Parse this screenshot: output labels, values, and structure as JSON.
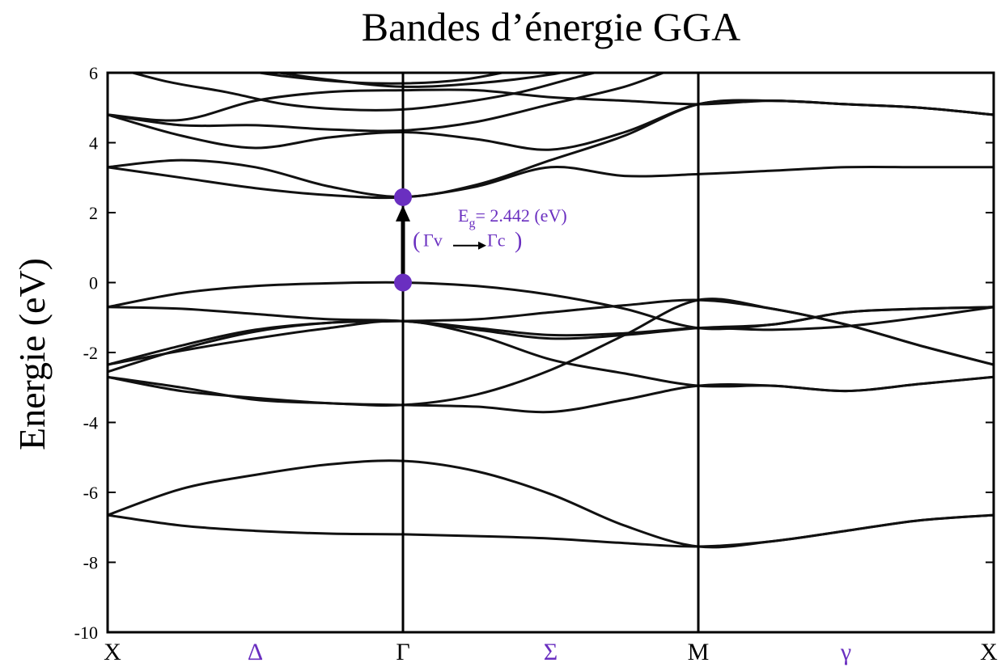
{
  "chart_data": {
    "type": "line",
    "title": "Bandes d’énergie GGA",
    "ylabel": "Energie (eV)",
    "xlabel": "",
    "ylim": [
      -10,
      6
    ],
    "yticks": [
      {
        "value": 6,
        "label": "6"
      },
      {
        "value": 4,
        "label": "4"
      },
      {
        "value": 2,
        "label": "2"
      },
      {
        "value": 0,
        "label": "0"
      },
      {
        "value": -2,
        "label": "-2"
      },
      {
        "value": -4,
        "label": "-4"
      },
      {
        "value": -6,
        "label": "-6"
      },
      {
        "value": -8,
        "label": "-8"
      },
      {
        "value": -10,
        "label": "-10"
      }
    ],
    "kpath": [
      "X",
      "Δ",
      "Γ",
      "Σ",
      "M",
      "γ",
      "X"
    ],
    "kpath_positions": [
      0,
      0.5,
      1,
      1.5,
      2,
      2.5,
      3
    ],
    "high_symmetry_points": [
      0,
      1,
      2,
      3
    ],
    "line_color": "#111111",
    "accent_color": "#6a2fc0",
    "series": [
      {
        "x": [
          0,
          0.25,
          0.5,
          0.75,
          1,
          1.25,
          1.5,
          1.75,
          2,
          2.25,
          2.5,
          2.75,
          3
        ],
        "y": [
          -6.65,
          -6.95,
          -7.1,
          -7.18,
          -7.2,
          -7.25,
          -7.32,
          -7.45,
          -7.55,
          -7.4,
          -7.1,
          -6.8,
          -6.65
        ]
      },
      {
        "x": [
          0,
          0.25,
          0.5,
          0.75,
          1,
          1.25,
          1.5,
          1.75,
          2,
          2.25,
          2.5,
          2.75,
          3
        ],
        "y": [
          -6.65,
          -5.9,
          -5.5,
          -5.2,
          -5.1,
          -5.4,
          -6.05,
          -6.95,
          -7.55,
          -7.4,
          -7.1,
          -6.8,
          -6.65
        ]
      },
      {
        "x": [
          0,
          0.25,
          0.5,
          0.75,
          1,
          1.25,
          1.5,
          1.75,
          2,
          2.25,
          2.5,
          2.75,
          3
        ],
        "y": [
          -2.7,
          -3.1,
          -3.3,
          -3.45,
          -3.5,
          -3.55,
          -3.7,
          -3.35,
          -2.95,
          -2.95,
          -3.1,
          -2.9,
          -2.7
        ]
      },
      {
        "x": [
          0,
          0.25,
          0.5,
          0.75,
          1,
          1.25,
          1.5,
          1.75,
          2,
          2.25,
          2.5,
          2.75,
          3
        ],
        "y": [
          -2.7,
          -3.0,
          -3.35,
          -3.45,
          -3.5,
          -3.2,
          -2.5,
          -1.5,
          -0.5,
          -0.75,
          -1.2,
          -1.8,
          -2.35
        ]
      },
      {
        "x": [
          0,
          0.25,
          0.5,
          0.75,
          1,
          1.25,
          1.5,
          1.75,
          2,
          2.25,
          2.5,
          2.75,
          3
        ],
        "y": [
          -2.35,
          -1.95,
          -1.6,
          -1.3,
          -1.1,
          -1.5,
          -2.2,
          -2.6,
          -2.95,
          -2.95,
          -3.1,
          -2.9,
          -2.7
        ]
      },
      {
        "x": [
          0,
          0.25,
          0.5,
          0.75,
          1,
          1.25,
          1.5,
          1.75,
          2,
          2.25,
          2.5,
          2.75,
          3
        ],
        "y": [
          -2.35,
          -1.8,
          -1.35,
          -1.15,
          -1.1,
          -1.05,
          -0.85,
          -0.65,
          -0.5,
          -0.75,
          -1.2,
          -1.8,
          -2.35
        ]
      },
      {
        "x": [
          0,
          0.25,
          0.5,
          0.75,
          1,
          1.25,
          1.5,
          1.75,
          2,
          2.25,
          2.5,
          2.75,
          3
        ],
        "y": [
          -2.55,
          -1.9,
          -1.4,
          -1.15,
          -1.1,
          -1.3,
          -1.5,
          -1.45,
          -1.3,
          -1.35,
          -1.25,
          -1.0,
          -0.7
        ]
      },
      {
        "x": [
          0,
          0.25,
          0.5,
          0.75,
          1,
          1.25,
          1.5,
          1.75,
          2,
          2.25,
          2.5,
          2.75,
          3
        ],
        "y": [
          -0.7,
          -0.75,
          -0.9,
          -1.05,
          -1.1,
          -1.35,
          -1.6,
          -1.5,
          -1.3,
          -1.2,
          -0.85,
          -0.75,
          -0.7
        ]
      },
      {
        "x": [
          0,
          0.25,
          0.5,
          0.75,
          1,
          1.25,
          1.5,
          1.75,
          2,
          2.25,
          2.5,
          2.75,
          3
        ],
        "y": [
          -0.7,
          -0.3,
          -0.1,
          -0.02,
          0,
          -0.1,
          -0.35,
          -0.75,
          -1.3,
          -1.2,
          -0.85,
          -0.75,
          -0.7
        ]
      },
      {
        "x": [
          0,
          0.25,
          0.5,
          0.75,
          1,
          1.25,
          1.5,
          1.75,
          2,
          2.25,
          2.5,
          2.75,
          3
        ],
        "y": [
          3.3,
          3.0,
          2.7,
          2.5,
          2.44,
          2.75,
          3.3,
          3.05,
          3.1,
          3.2,
          3.3,
          3.3,
          3.3
        ]
      },
      {
        "x": [
          0,
          0.25,
          0.5,
          0.75,
          1,
          1.25,
          1.5,
          1.75,
          2,
          2.25,
          2.5,
          2.75,
          3
        ],
        "y": [
          3.3,
          3.5,
          3.3,
          2.75,
          2.45,
          2.8,
          3.5,
          4.2,
          5.1,
          5.2,
          5.1,
          5.0,
          4.8
        ]
      },
      {
        "x": [
          0,
          0.25,
          0.5,
          0.75,
          1,
          1.25,
          1.5,
          1.75,
          2,
          2.25,
          2.5,
          2.75,
          3
        ],
        "y": [
          4.8,
          4.2,
          3.85,
          4.15,
          4.3,
          4.1,
          3.8,
          4.3,
          5.1,
          5.2,
          5.1,
          5.0,
          4.8
        ]
      },
      {
        "x": [
          0,
          0.25,
          0.5,
          0.75,
          1,
          1.25,
          1.5,
          1.75,
          2,
          2.25,
          2.5,
          2.75,
          3
        ],
        "y": [
          4.8,
          4.5,
          4.5,
          4.38,
          4.35,
          4.6,
          5.1,
          5.6,
          6.3,
          6.3,
          6.0,
          6.2,
          6.3
        ]
      },
      {
        "x": [
          0,
          0.25,
          0.5,
          0.75,
          1,
          1.25,
          1.5,
          1.75,
          2,
          2.25,
          2.5,
          2.75,
          3
        ],
        "y": [
          4.8,
          4.65,
          5.2,
          5.45,
          5.5,
          5.5,
          5.3,
          5.2,
          5.1,
          5.2,
          5.1,
          5.0,
          4.8
        ]
      },
      {
        "x": [
          0,
          0.2,
          0.4,
          0.6,
          0.8,
          1,
          1.2,
          1.4,
          1.6,
          1.8
        ],
        "y": [
          6.2,
          5.75,
          5.45,
          5.1,
          4.95,
          4.95,
          5.15,
          5.45,
          5.9,
          6.3
        ]
      },
      {
        "x": [
          0.5,
          0.75,
          1,
          1.25,
          1.5,
          1.7
        ],
        "y": [
          6.1,
          5.8,
          5.6,
          5.7,
          5.95,
          6.3
        ]
      },
      {
        "x": [
          0.3,
          0.6,
          0.9,
          1.2,
          1.5
        ],
        "y": [
          6.3,
          5.9,
          5.7,
          5.8,
          6.3
        ]
      }
    ],
    "markers": [
      {
        "x": 1,
        "y": 0
      },
      {
        "x": 1,
        "y": 2.442
      }
    ],
    "annotations": {
      "gap_prefix": "E",
      "gap_sub": "g",
      "gap_value": "= 2.442 (eV)",
      "open_paren": "(",
      "from_label": "Γv",
      "to_label": "Γc",
      "close_paren": ")"
    }
  }
}
